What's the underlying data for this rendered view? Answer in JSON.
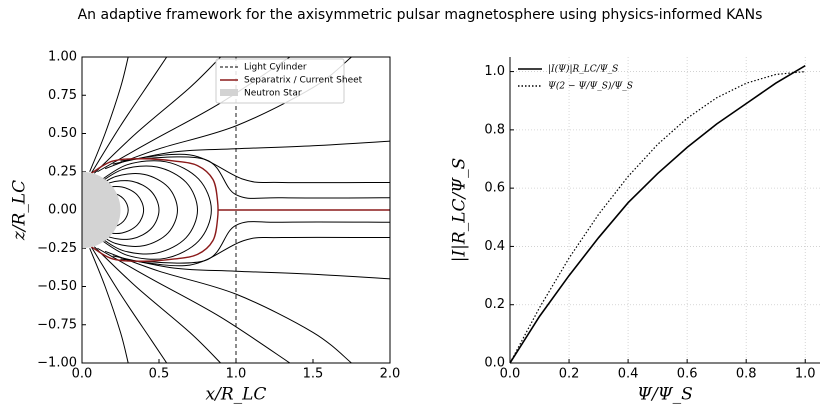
{
  "title": "An adaptive framework for the axisymmetric pulsar magnetosphere using physics-informed KANs",
  "chart_data": [
    {
      "type": "contour",
      "xlabel": "x/R_LC",
      "ylabel": "z/R_LC",
      "xlim": [
        0,
        2
      ],
      "ylim": [
        -1,
        1
      ],
      "xticks": [
        {
          "value": 0,
          "label": "0.0"
        },
        0.5,
        {
          "value": 1,
          "label": "1.0"
        },
        1.5,
        {
          "value": 2,
          "label": "2.0"
        }
      ],
      "yticks": [
        {
          "value": -1,
          "label": "−1.00"
        },
        {
          "value": -0.75,
          "label": "−0.75"
        },
        {
          "value": -0.5,
          "label": "−0.50"
        },
        {
          "value": -0.25,
          "label": "−0.25"
        },
        {
          "value": 0,
          "label": "0.00"
        },
        {
          "value": 0.25,
          "label": "0.25"
        },
        {
          "value": 0.5,
          "label": "0.50"
        },
        {
          "value": 0.75,
          "label": "0.75"
        },
        {
          "value": 1,
          "label": "1.00"
        }
      ],
      "line_color": "#000000",
      "field_lines": [
        {
          "x": [
            0.038,
            0.106,
            0.195,
            0.27,
            0.3,
            0.27,
            0.195,
            0.106,
            0.038
          ],
          "y": [
            0.065,
            0.106,
            0.113,
            0.073,
            0,
            -0.073,
            -0.113,
            -0.106,
            -0.065
          ]
        },
        {
          "x": [
            0.05,
            0.141,
            0.26,
            0.36,
            0.4,
            0.36,
            0.26,
            0.141,
            0.05
          ],
          "y": [
            0.087,
            0.141,
            0.15,
            0.097,
            0,
            -0.097,
            -0.15,
            -0.141,
            -0.087
          ]
        },
        {
          "x": [
            0.063,
            0.177,
            0.325,
            0.45,
            0.5,
            0.45,
            0.325,
            0.177,
            0.063
          ],
          "y": [
            0.108,
            0.177,
            0.188,
            0.121,
            0,
            -0.121,
            -0.188,
            -0.177,
            -0.108
          ]
        },
        {
          "x": [
            0.078,
            0.219,
            0.403,
            0.559,
            0.62,
            0.559,
            0.403,
            0.219,
            0.078
          ],
          "y": [
            0.134,
            0.219,
            0.233,
            0.15,
            0,
            -0.15,
            -0.233,
            -0.219,
            -0.134
          ]
        },
        {
          "x": [
            0.094,
            0.265,
            0.487,
            0.676,
            0.75,
            0.676,
            0.487,
            0.265,
            0.094
          ],
          "y": [
            0.162,
            0.265,
            0.281,
            0.181,
            0,
            -0.181,
            -0.281,
            -0.265,
            -0.162
          ]
        },
        {
          "x": [
            0.105,
            0.297,
            0.546,
            0.757,
            0.84,
            0.757,
            0.546,
            0.297,
            0.105
          ],
          "y": [
            0.182,
            0.297,
            0.315,
            0.203,
            0,
            -0.203,
            -0.315,
            -0.297,
            -0.182
          ]
        },
        {
          "x": [
            0.05,
            0.15,
            0.25,
            0.3
          ],
          "y": [
            0.25,
            0.5,
            0.8,
            1.0
          ]
        },
        {
          "x": [
            0.06,
            0.25,
            0.45,
            0.55
          ],
          "y": [
            0.24,
            0.55,
            0.85,
            1.0
          ]
        },
        {
          "x": [
            0.08,
            0.35,
            0.7,
            0.9
          ],
          "y": [
            0.24,
            0.5,
            0.8,
            1.0
          ]
        },
        {
          "x": [
            0.1,
            0.45,
            0.9,
            1.35
          ],
          "y": [
            0.25,
            0.45,
            0.7,
            1.0
          ]
        },
        {
          "x": [
            0.15,
            0.5,
            1.0,
            1.5,
            1.75
          ],
          "y": [
            0.27,
            0.4,
            0.55,
            0.8,
            1.0
          ]
        },
        {
          "x": [
            0.2,
            0.6,
            1.0,
            1.5,
            2.0
          ],
          "y": [
            0.3,
            0.38,
            0.4,
            0.42,
            0.45
          ]
        },
        {
          "x": [
            0.25,
            0.7,
            1.05,
            1.3,
            2.0
          ],
          "y": [
            0.32,
            0.36,
            0.2,
            0.18,
            0.18
          ]
        },
        {
          "x": [
            0.3,
            0.8,
            1.0,
            1.3,
            2.0
          ],
          "y": [
            0.33,
            0.33,
            0.1,
            0.08,
            0.08
          ]
        },
        {
          "x": [
            0.05,
            0.15,
            0.25,
            0.3
          ],
          "y": [
            -0.25,
            -0.5,
            -0.8,
            -1.0
          ]
        },
        {
          "x": [
            0.06,
            0.25,
            0.45,
            0.55
          ],
          "y": [
            -0.24,
            -0.55,
            -0.85,
            -1.0
          ]
        },
        {
          "x": [
            0.08,
            0.35,
            0.7,
            0.9
          ],
          "y": [
            -0.24,
            -0.5,
            -0.8,
            -1.0
          ]
        },
        {
          "x": [
            0.1,
            0.45,
            0.9,
            1.35
          ],
          "y": [
            -0.25,
            -0.45,
            -0.7,
            -1.0
          ]
        },
        {
          "x": [
            0.15,
            0.5,
            1.0,
            1.5,
            1.75
          ],
          "y": [
            -0.27,
            -0.4,
            -0.55,
            -0.8,
            -1.0
          ]
        },
        {
          "x": [
            0.2,
            0.6,
            1.0,
            1.5,
            2.0
          ],
          "y": [
            -0.3,
            -0.38,
            -0.4,
            -0.42,
            -0.45
          ]
        },
        {
          "x": [
            0.25,
            0.7,
            1.05,
            1.3,
            2.0
          ],
          "y": [
            -0.32,
            -0.36,
            -0.2,
            -0.18,
            -0.18
          ]
        },
        {
          "x": [
            0.3,
            0.8,
            1.0,
            1.3,
            2.0
          ],
          "y": [
            -0.33,
            -0.33,
            -0.1,
            -0.08,
            -0.08
          ]
        }
      ],
      "light_cylinder": {
        "name": "Light Cylinder",
        "x": 1,
        "color": "#000000"
      },
      "separatrix": {
        "name": "Separatrix / Current Sheet",
        "color": "#8b1a1a",
        "x": [
          0.06,
          0.2,
          0.4,
          0.6,
          0.75,
          0.85,
          0.88,
          0.88,
          0.85,
          0.75,
          0.6,
          0.4,
          0.2,
          0.06
        ],
        "y": [
          0.24,
          0.32,
          0.335,
          0.32,
          0.29,
          0.2,
          0.06,
          -0.06,
          -0.2,
          -0.29,
          -0.32,
          -0.335,
          -0.32,
          -0.24
        ]
      },
      "current_sheet": {
        "x": [
          0.88,
          2.0
        ],
        "y": [
          0,
          0
        ]
      },
      "neutron_star": {
        "name": "Neutron Star",
        "color": "#d3d3d3",
        "radius": 0.25
      },
      "legend": "upper right"
    },
    {
      "type": "line",
      "xlabel": "Ψ/Ψ_S",
      "ylabel": "|I|R_LC/Ψ_S",
      "xlim": [
        0,
        1.05
      ],
      "ylim": [
        0,
        1.05
      ],
      "xticks": [
        {
          "value": 0,
          "label": "0.0"
        },
        0.2,
        0.4,
        0.6,
        0.8,
        {
          "value": 1,
          "label": "1.0"
        }
      ],
      "yticks": [
        {
          "value": 0,
          "label": "0.0"
        },
        0.2,
        0.4,
        0.6,
        0.8,
        {
          "value": 1,
          "label": "1.0"
        }
      ],
      "grid": true,
      "legend": "upper left",
      "x": [
        0,
        0.1,
        0.2,
        0.3,
        0.4,
        0.5,
        0.6,
        0.7,
        0.8,
        0.9,
        1.0
      ],
      "series": [
        {
          "name": "|I(Ψ)|R_LC/Ψ_S",
          "color": "#000000",
          "style": "solid",
          "values": [
            0,
            0.16,
            0.3,
            0.43,
            0.55,
            0.65,
            0.74,
            0.82,
            0.89,
            0.96,
            1.02
          ]
        },
        {
          "name": "Ψ(2 − Ψ/Ψ_S)/Ψ_S",
          "color": "#000000",
          "style": "dotted",
          "values": [
            0,
            0.19,
            0.36,
            0.51,
            0.64,
            0.75,
            0.84,
            0.91,
            0.96,
            0.99,
            1.0
          ]
        }
      ]
    }
  ]
}
